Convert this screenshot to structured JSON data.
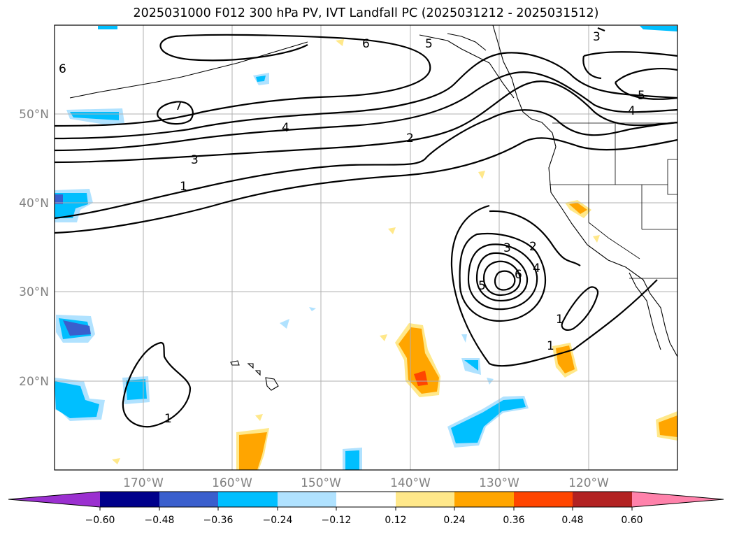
{
  "title": "2025031000 F012 300 hPa PV, IVT Landfall PC (2025031212 - 2025031512)",
  "lat_labels": [
    "50°N",
    "40°N",
    "30°N",
    "20°N"
  ],
  "lon_labels": [
    "170°W",
    "160°W",
    "150°W",
    "140°W",
    "130°W",
    "120°W"
  ],
  "colorbar": {
    "tick_labels": [
      "−0.60",
      "−0.48",
      "−0.36",
      "−0.24",
      "−0.12",
      "0.12",
      "0.24",
      "0.36",
      "0.48",
      "0.60"
    ],
    "colors": [
      "#9b30d0",
      "#00008b",
      "#3a5fcd",
      "#00bfff",
      "#b0e2ff",
      "#ffffff",
      "#ffe88a",
      "#ffa500",
      "#ff4500",
      "#b22222",
      "#ff82ab"
    ]
  },
  "contour_labels": {
    "north_7": "7",
    "north_6": "6",
    "north_5": "5",
    "north_4": "4",
    "north_3": "3",
    "north_2": "2",
    "north_1": "1",
    "ne_3": "3",
    "ne_5": "5",
    "ne_4": "4",
    "nw_6": "6",
    "low_3": "3",
    "low_2": "2",
    "low_4": "4",
    "low_6": "6",
    "low_5": "5",
    "low_1a": "1",
    "low_1b": "1",
    "sw_1": "1"
  }
}
